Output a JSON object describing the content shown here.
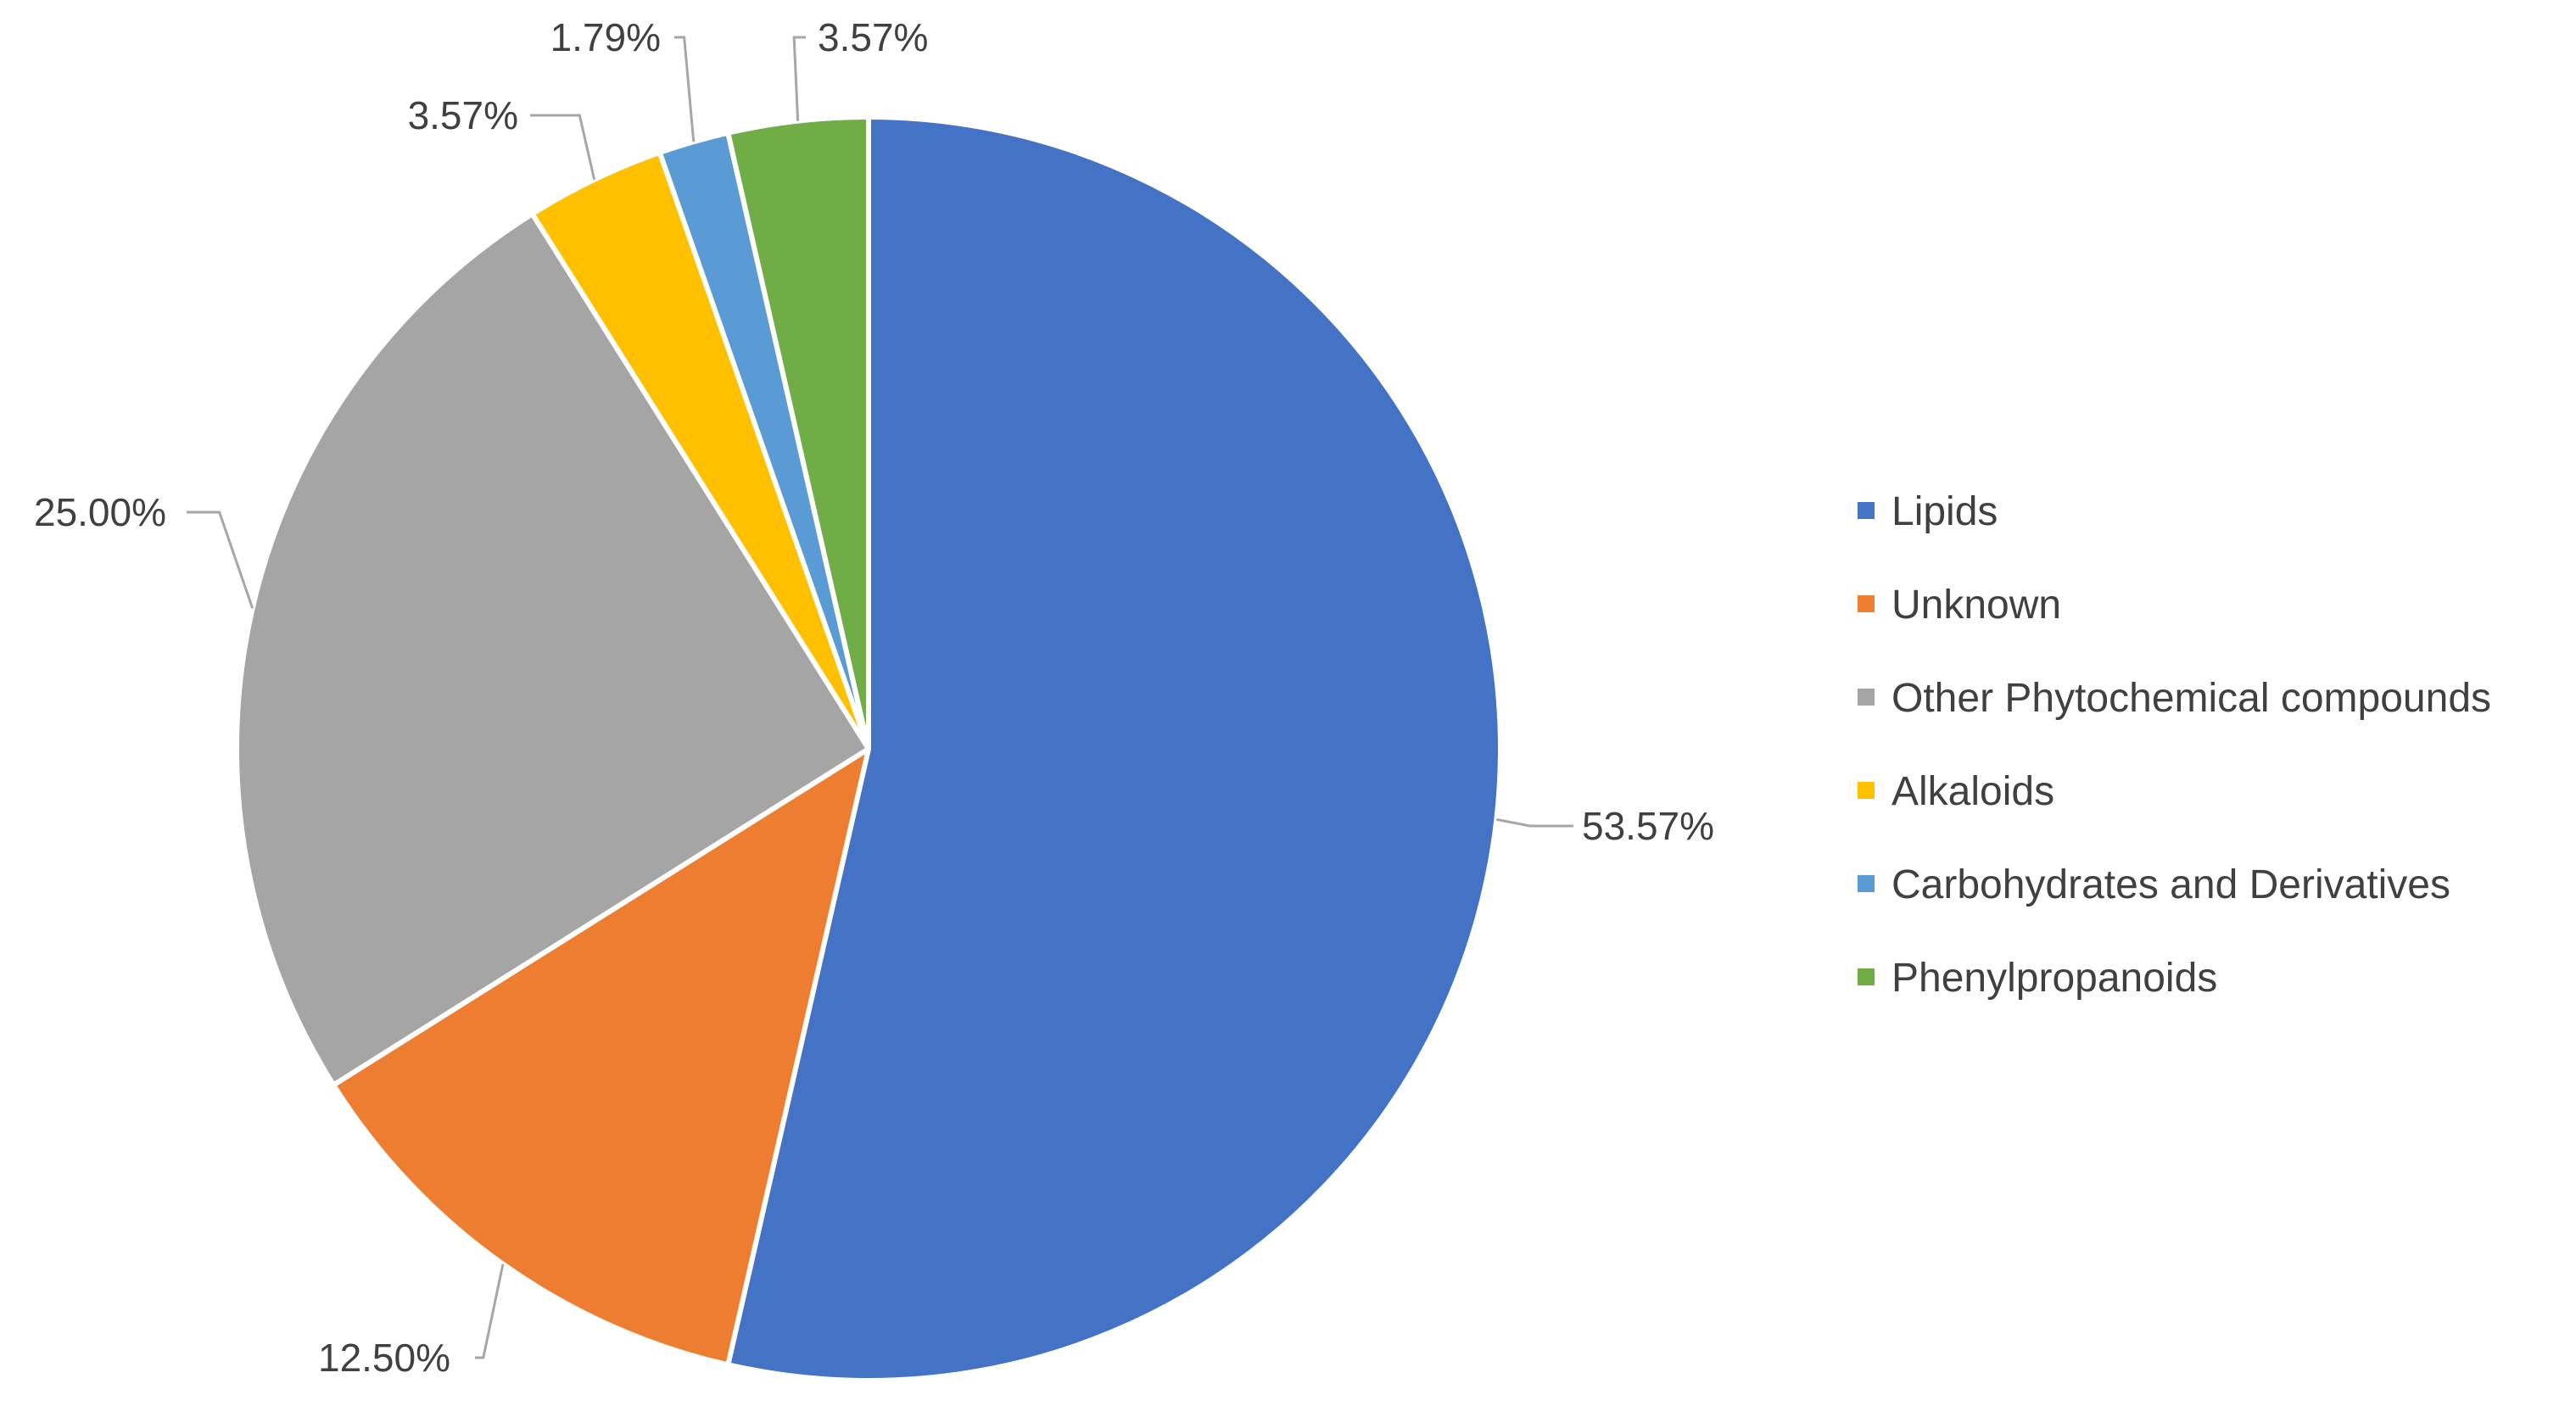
{
  "chart_data": {
    "type": "pie",
    "start_angle_deg": 0,
    "direction": "clockwise",
    "legend_position": "right",
    "slices": [
      {
        "label": "Lipids",
        "value": 53.57,
        "data_label": "53.57%",
        "color": "#4472C4"
      },
      {
        "label": "Unknown",
        "value": 12.5,
        "data_label": "12.50%",
        "color": "#ED7D31"
      },
      {
        "label": "Other Phytochemical compounds",
        "value": 25.0,
        "data_label": "25.00%",
        "color": "#A5A5A5"
      },
      {
        "label": "Alkaloids",
        "value": 3.57,
        "data_label": "3.57%",
        "color": "#FFC000"
      },
      {
        "label": "Carbohydrates and Derivatives",
        "value": 1.79,
        "data_label": "1.79%",
        "color": "#5B9BD5"
      },
      {
        "label": "Phenylpropanoids",
        "value": 3.57,
        "data_label": "3.57%",
        "color": "#70AD47"
      }
    ]
  }
}
